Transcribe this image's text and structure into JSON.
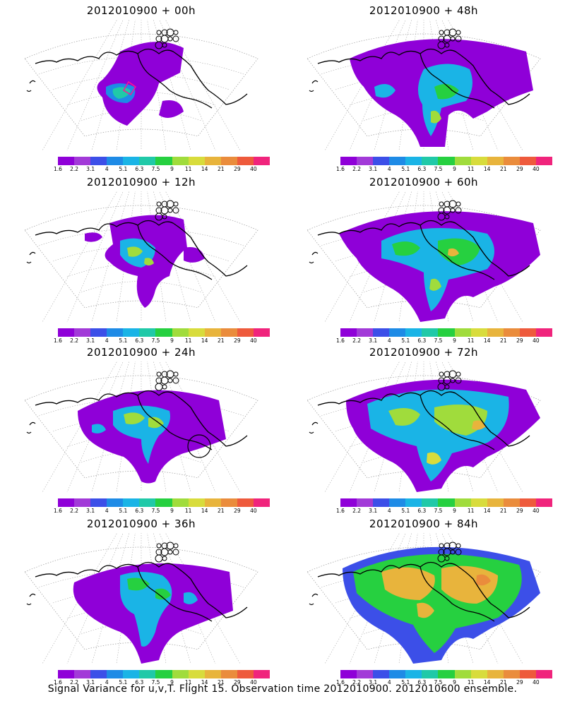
{
  "panels": [
    {
      "title": "2012010900  +  00h"
    },
    {
      "title": "2012010900  +  48h"
    },
    {
      "title": "2012010900  +  12h"
    },
    {
      "title": "2012010900  +  60h"
    },
    {
      "title": "2012010900  +  24h"
    },
    {
      "title": "2012010900  +  72h"
    },
    {
      "title": "2012010900  +  36h"
    },
    {
      "title": "2012010900  +  84h"
    }
  ],
  "colorbar": {
    "colors": [
      "#8f00d8",
      "#a23ad8",
      "#3c4fe8",
      "#1e8be6",
      "#1ab4e6",
      "#20c9a8",
      "#26d040",
      "#a0dc3c",
      "#d8dc3c",
      "#e8b43c",
      "#ea8c3c",
      "#ee5a3c",
      "#f0247c"
    ],
    "tick_labels": [
      "1.6",
      "2.2",
      "3.1",
      "4",
      "5.1",
      "6.3",
      "7.5",
      "9",
      "11",
      "14",
      "21",
      "29",
      "40"
    ]
  },
  "caption": "Signal Variance for u,v,T. Flight 15. Observation time 2012010900. 2012010600 ensemble."
}
